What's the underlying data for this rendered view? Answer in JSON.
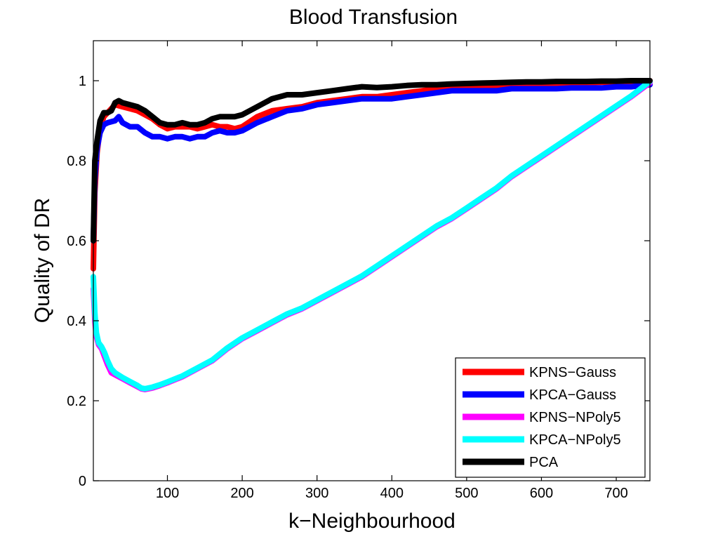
{
  "chart_data": {
    "type": "line",
    "title": "Blood Transfusion",
    "xlabel": "k−Neighbourhood",
    "ylabel": "Quality of DR",
    "xlim": [
      1,
      745
    ],
    "ylim": [
      0,
      1.1
    ],
    "xticks": [
      100,
      200,
      300,
      400,
      500,
      600,
      700
    ],
    "yticks": [
      0,
      0.2,
      0.4,
      0.6,
      0.8,
      1
    ],
    "ytick_labels": [
      "0",
      "0.2",
      "0.4",
      "0.6",
      "0.8",
      "1"
    ],
    "grid": false,
    "legend_position": "bottom-right",
    "series": [
      {
        "name": "KPNS−Gauss",
        "color": "#ff0000",
        "x": [
          1,
          3,
          6,
          10,
          15,
          20,
          30,
          40,
          50,
          60,
          70,
          80,
          90,
          100,
          110,
          120,
          130,
          140,
          150,
          160,
          170,
          180,
          190,
          200,
          220,
          240,
          260,
          280,
          300,
          320,
          340,
          360,
          380,
          400,
          420,
          440,
          460,
          480,
          500,
          520,
          540,
          560,
          580,
          600,
          620,
          640,
          660,
          680,
          700,
          720,
          745
        ],
        "y": [
          0.53,
          0.72,
          0.82,
          0.88,
          0.91,
          0.92,
          0.94,
          0.935,
          0.93,
          0.925,
          0.915,
          0.905,
          0.89,
          0.88,
          0.885,
          0.885,
          0.885,
          0.88,
          0.885,
          0.89,
          0.885,
          0.885,
          0.88,
          0.885,
          0.91,
          0.925,
          0.93,
          0.935,
          0.945,
          0.95,
          0.955,
          0.96,
          0.96,
          0.965,
          0.97,
          0.975,
          0.98,
          0.982,
          0.985,
          0.987,
          0.988,
          0.99,
          0.99,
          0.992,
          0.993,
          0.994,
          0.995,
          0.996,
          0.997,
          0.998,
          1.0
        ]
      },
      {
        "name": "KPCA−Gauss",
        "color": "#0000ff",
        "x": [
          1,
          3,
          6,
          10,
          15,
          20,
          30,
          35,
          40,
          50,
          60,
          70,
          80,
          90,
          100,
          110,
          120,
          130,
          140,
          150,
          160,
          170,
          180,
          190,
          200,
          220,
          240,
          260,
          280,
          300,
          320,
          340,
          360,
          380,
          400,
          420,
          440,
          460,
          480,
          500,
          520,
          540,
          560,
          580,
          600,
          620,
          640,
          660,
          680,
          700,
          720,
          745
        ],
        "y": [
          0.6,
          0.75,
          0.83,
          0.87,
          0.89,
          0.895,
          0.9,
          0.91,
          0.895,
          0.885,
          0.885,
          0.87,
          0.86,
          0.86,
          0.855,
          0.86,
          0.86,
          0.855,
          0.86,
          0.86,
          0.87,
          0.875,
          0.87,
          0.87,
          0.875,
          0.895,
          0.91,
          0.925,
          0.93,
          0.94,
          0.945,
          0.95,
          0.955,
          0.955,
          0.955,
          0.96,
          0.965,
          0.97,
          0.975,
          0.975,
          0.975,
          0.975,
          0.98,
          0.98,
          0.98,
          0.98,
          0.982,
          0.982,
          0.982,
          0.985,
          0.985,
          0.99
        ]
      },
      {
        "name": "KPNS−NPoly5",
        "color": "#ff00ff",
        "x": [
          1,
          3,
          5,
          8,
          12,
          16,
          20,
          25,
          30,
          40,
          50,
          60,
          65,
          70,
          80,
          90,
          100,
          120,
          140,
          160,
          180,
          200,
          220,
          240,
          260,
          280,
          300,
          320,
          340,
          360,
          380,
          400,
          420,
          440,
          460,
          480,
          500,
          520,
          540,
          560,
          580,
          600,
          620,
          640,
          660,
          680,
          700,
          720,
          745
        ],
        "y": [
          0.48,
          0.4,
          0.36,
          0.34,
          0.33,
          0.31,
          0.29,
          0.27,
          0.265,
          0.255,
          0.245,
          0.235,
          0.23,
          0.228,
          0.232,
          0.238,
          0.245,
          0.26,
          0.28,
          0.3,
          0.33,
          0.355,
          0.375,
          0.395,
          0.415,
          0.43,
          0.45,
          0.47,
          0.49,
          0.51,
          0.535,
          0.56,
          0.585,
          0.61,
          0.635,
          0.655,
          0.68,
          0.705,
          0.73,
          0.76,
          0.785,
          0.81,
          0.835,
          0.86,
          0.885,
          0.91,
          0.935,
          0.96,
          0.995
        ]
      },
      {
        "name": "KPCA−NPoly5",
        "color": "#00ffff",
        "x": [
          1,
          3,
          5,
          8,
          12,
          16,
          20,
          25,
          30,
          40,
          50,
          60,
          65,
          70,
          80,
          90,
          100,
          120,
          140,
          160,
          180,
          200,
          220,
          240,
          260,
          280,
          300,
          320,
          340,
          360,
          380,
          400,
          420,
          440,
          460,
          480,
          500,
          520,
          540,
          560,
          580,
          600,
          620,
          640,
          660,
          680,
          700,
          720,
          745
        ],
        "y": [
          0.51,
          0.42,
          0.37,
          0.345,
          0.335,
          0.32,
          0.3,
          0.28,
          0.27,
          0.258,
          0.248,
          0.238,
          0.232,
          0.23,
          0.234,
          0.24,
          0.247,
          0.262,
          0.282,
          0.302,
          0.332,
          0.357,
          0.377,
          0.397,
          0.417,
          0.432,
          0.452,
          0.472,
          0.492,
          0.512,
          0.537,
          0.562,
          0.587,
          0.612,
          0.637,
          0.657,
          0.682,
          0.707,
          0.732,
          0.762,
          0.787,
          0.812,
          0.837,
          0.862,
          0.887,
          0.912,
          0.937,
          0.962,
          0.998
        ]
      },
      {
        "name": "PCA",
        "color": "#000000",
        "x": [
          1,
          3,
          6,
          10,
          15,
          20,
          25,
          30,
          35,
          40,
          50,
          60,
          70,
          80,
          90,
          100,
          110,
          120,
          130,
          140,
          150,
          160,
          170,
          180,
          190,
          200,
          220,
          240,
          260,
          280,
          300,
          320,
          340,
          360,
          380,
          400,
          420,
          440,
          460,
          480,
          500,
          520,
          540,
          560,
          580,
          600,
          620,
          640,
          660,
          680,
          700,
          720,
          745
        ],
        "y": [
          0.6,
          0.8,
          0.85,
          0.9,
          0.92,
          0.92,
          0.925,
          0.945,
          0.95,
          0.945,
          0.94,
          0.935,
          0.925,
          0.91,
          0.895,
          0.89,
          0.89,
          0.895,
          0.89,
          0.89,
          0.895,
          0.905,
          0.91,
          0.91,
          0.91,
          0.915,
          0.935,
          0.955,
          0.965,
          0.965,
          0.97,
          0.975,
          0.98,
          0.985,
          0.983,
          0.985,
          0.988,
          0.99,
          0.99,
          0.992,
          0.993,
          0.994,
          0.995,
          0.996,
          0.997,
          0.997,
          0.998,
          0.998,
          0.998,
          0.999,
          0.999,
          1.0,
          1.0
        ]
      }
    ]
  }
}
